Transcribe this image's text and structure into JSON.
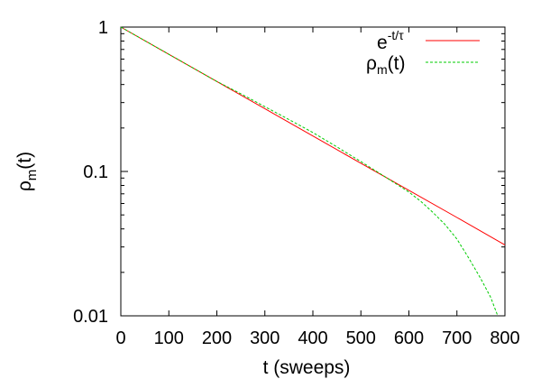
{
  "chart_data": {
    "type": "line",
    "xlabel": "t (sweeps)",
    "ylabel": {
      "base": "ρ",
      "sub": "m",
      "tail": "(t)"
    },
    "xlim": [
      0,
      800
    ],
    "ylim": [
      0.01,
      1
    ],
    "yscale": "log",
    "grid": false,
    "legend_position": "top-right",
    "x_ticks": [
      "0",
      "100",
      "200",
      "300",
      "400",
      "500",
      "600",
      "700",
      "800"
    ],
    "y_ticks": [
      {
        "value": 1,
        "label": "1"
      },
      {
        "value": 0.1,
        "label": "0.1"
      },
      {
        "value": 0.01,
        "label": "0.01"
      }
    ],
    "series": [
      {
        "legend": {
          "base": "e",
          "sup": "-t/τ",
          "sub": "",
          "tail": ""
        },
        "color": "#ff0000",
        "style": "solid",
        "x": [
          0,
          100,
          200,
          300,
          400,
          500,
          600,
          700,
          800
        ],
        "y": [
          1.0,
          0.648,
          0.42,
          0.272,
          0.176,
          0.114,
          0.074,
          0.048,
          0.031
        ]
      },
      {
        "legend": {
          "base": "ρ",
          "sup": "",
          "sub": "m",
          "tail": "(t)"
        },
        "color": "#00cc00",
        "style": "dashed",
        "x": [
          0,
          100,
          200,
          250,
          300,
          350,
          400,
          450,
          500,
          550,
          600,
          625,
          650,
          675,
          700,
          725,
          750,
          770,
          785
        ],
        "y": [
          1.0,
          0.648,
          0.42,
          0.345,
          0.281,
          0.229,
          0.186,
          0.148,
          0.117,
          0.092,
          0.072,
          0.062,
          0.052,
          0.043,
          0.034,
          0.025,
          0.018,
          0.0135,
          0.01
        ]
      }
    ]
  }
}
